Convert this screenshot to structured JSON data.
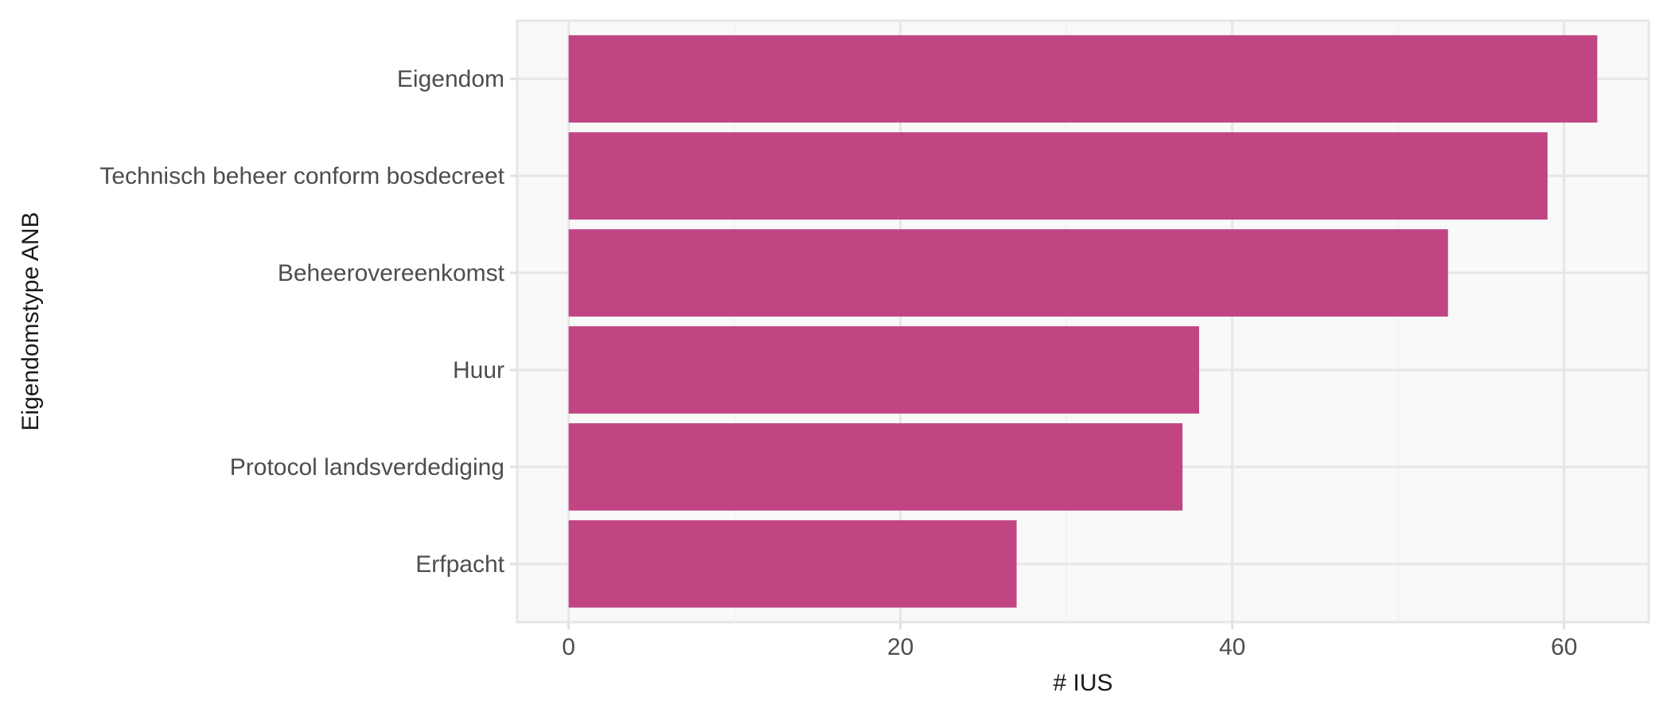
{
  "chart_data": {
    "type": "bar",
    "orientation": "horizontal",
    "categories": [
      "Eigendom",
      "Technisch beheer conform bosdecreet",
      "Beheerovereenkomst",
      "Huur",
      "Protocol landsverdediging",
      "Erfpacht"
    ],
    "values": [
      62,
      59,
      53,
      38,
      37,
      27
    ],
    "xlabel": "# IUS",
    "ylabel": "Eigendomstype ANB",
    "xlim": [
      -3.1,
      65.1
    ],
    "xticks": [
      0,
      20,
      40,
      60
    ],
    "grid": true,
    "colors": {
      "bar": "#c04582",
      "panel_background": "#f9f9f9",
      "grid": "#e6e6e6"
    }
  }
}
